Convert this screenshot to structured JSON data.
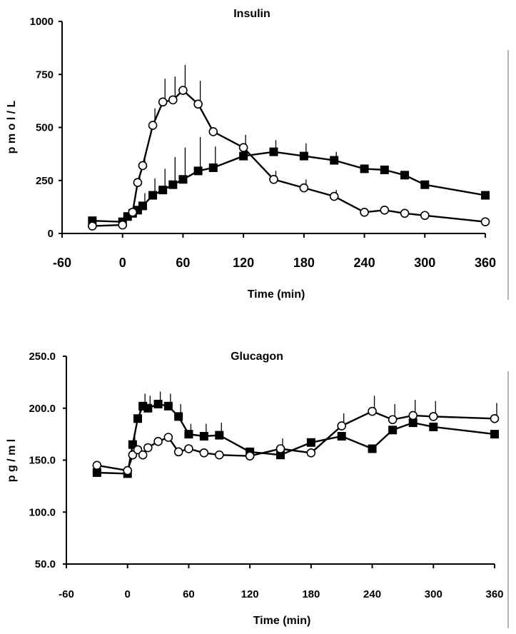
{
  "chart_data": [
    {
      "type": "line",
      "title": "Insulin",
      "xlabel": "Time (min)",
      "ylabel": "p m o l / L",
      "xlim": [
        -60,
        360
      ],
      "ylim": [
        0,
        1000
      ],
      "xticks": [
        "-60",
        "0",
        "60",
        "120",
        "180",
        "240",
        "300",
        "360"
      ],
      "yticks": [
        "0",
        "250",
        "500",
        "750",
        "1000"
      ],
      "series": [
        {
          "marker": "open-circle",
          "x": [
            -30,
            0,
            10,
            15,
            20,
            30,
            40,
            50,
            60,
            75,
            90,
            120,
            150,
            180,
            210,
            240,
            260,
            280,
            300,
            360
          ],
          "y": [
            35,
            40,
            100,
            240,
            320,
            510,
            620,
            630,
            675,
            610,
            480,
            405,
            255,
            215,
            175,
            100,
            110,
            95,
            85,
            55
          ],
          "err": [
            0,
            0,
            20,
            30,
            40,
            80,
            110,
            110,
            120,
            110,
            0,
            60,
            40,
            40,
            30,
            0,
            0,
            0,
            0,
            0
          ]
        },
        {
          "marker": "filled-square",
          "x": [
            -30,
            0,
            5,
            10,
            15,
            20,
            30,
            40,
            50,
            60,
            75,
            90,
            120,
            150,
            180,
            210,
            240,
            260,
            280,
            300,
            360
          ],
          "y": [
            60,
            55,
            80,
            95,
            110,
            130,
            180,
            205,
            230,
            255,
            295,
            310,
            365,
            385,
            365,
            345,
            305,
            300,
            275,
            230,
            180
          ],
          "err": [
            0,
            0,
            15,
            20,
            40,
            60,
            80,
            100,
            130,
            150,
            160,
            100,
            60,
            55,
            60,
            40,
            0,
            0,
            0,
            0,
            0
          ]
        }
      ]
    },
    {
      "type": "line",
      "title": "Glucagon",
      "xlabel": "Time (min)",
      "ylabel": "p g / m l",
      "xlim": [
        -60,
        360
      ],
      "ylim": [
        50,
        250
      ],
      "xticks": [
        "-60",
        "0",
        "60",
        "120",
        "180",
        "240",
        "300",
        "360"
      ],
      "yticks": [
        "50.0",
        "100.0",
        "150.0",
        "200.0",
        "250.0"
      ],
      "series": [
        {
          "marker": "open-circle",
          "x": [
            -30,
            0,
            5,
            10,
            15,
            20,
            30,
            40,
            50,
            60,
            75,
            90,
            120,
            150,
            180,
            210,
            240,
            260,
            280,
            300,
            360
          ],
          "y": [
            145,
            140,
            155,
            160,
            155,
            162,
            168,
            172,
            158,
            161,
            157,
            155,
            154,
            161,
            157,
            183,
            197,
            189,
            193,
            192,
            190
          ],
          "err": [
            0,
            0,
            0,
            0,
            0,
            0,
            0,
            0,
            0,
            0,
            0,
            0,
            0,
            10,
            0,
            12,
            15,
            15,
            15,
            15,
            15
          ]
        },
        {
          "marker": "filled-square",
          "x": [
            -30,
            0,
            5,
            10,
            15,
            20,
            30,
            40,
            50,
            60,
            75,
            90,
            120,
            150,
            180,
            210,
            240,
            260,
            280,
            300,
            360
          ],
          "y": [
            138,
            137,
            165,
            190,
            202,
            200,
            204,
            202,
            192,
            175,
            173,
            174,
            158,
            155,
            167,
            173,
            161,
            179,
            186,
            182,
            175
          ],
          "err": [
            0,
            0,
            10,
            12,
            12,
            12,
            12,
            12,
            12,
            10,
            12,
            12,
            0,
            0,
            0,
            0,
            0,
            0,
            0,
            0,
            0
          ]
        }
      ]
    }
  ]
}
